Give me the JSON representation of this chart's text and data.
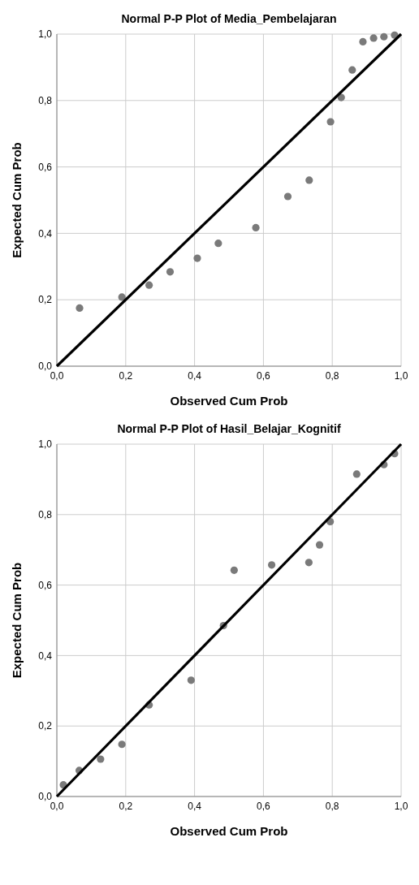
{
  "chart_data": [
    {
      "type": "scatter",
      "title": "Normal P-P Plot of Media_Pembelajaran",
      "xlabel": "Observed Cum Prob",
      "ylabel": "Expected Cum Prob",
      "xlim": [
        0,
        1
      ],
      "ylim": [
        0,
        1
      ],
      "xticks": [
        {
          "value": 0,
          "label": "0,0"
        },
        {
          "value": 0.2,
          "label": "0,2"
        },
        {
          "value": 0.4,
          "label": "0,4"
        },
        {
          "value": 0.6,
          "label": "0,6"
        },
        {
          "value": 0.8,
          "label": "0,8"
        },
        {
          "value": 1,
          "label": "1,0"
        }
      ],
      "yticks": [
        {
          "value": 0,
          "label": "0,0"
        },
        {
          "value": 0.2,
          "label": "0,2"
        },
        {
          "value": 0.4,
          "label": "0,4"
        },
        {
          "value": 0.6,
          "label": "0,6"
        },
        {
          "value": 0.8,
          "label": "0,8"
        },
        {
          "value": 1,
          "label": "1,0"
        }
      ],
      "grid": true,
      "line_style": "solid",
      "series": [
        {
          "marker": "circle",
          "color": "#7a7a7a",
          "x": [
            0.066,
            0.189,
            0.268,
            0.329,
            0.408,
            0.469,
            0.578,
            0.671,
            0.733,
            0.795,
            0.826,
            0.858,
            0.889,
            0.92,
            0.95,
            0.981
          ],
          "values": [
            0.175,
            0.208,
            0.244,
            0.284,
            0.325,
            0.37,
            0.417,
            0.511,
            0.56,
            0.736,
            0.809,
            0.892,
            0.977,
            0.988,
            0.992,
            0.997
          ]
        },
        {
          "type": "line",
          "color": "#000000",
          "x": [
            0,
            1
          ],
          "values": [
            0,
            1
          ]
        }
      ]
    },
    {
      "type": "scatter",
      "title": "Normal P-P Plot of Hasil_Belajar_Kognitif",
      "xlabel": "Observed Cum Prob",
      "ylabel": "Expected Cum Prob",
      "xlim": [
        0,
        1
      ],
      "ylim": [
        0,
        1
      ],
      "xticks": [
        {
          "value": 0,
          "label": "0,0"
        },
        {
          "value": 0.2,
          "label": "0,2"
        },
        {
          "value": 0.4,
          "label": "0,4"
        },
        {
          "value": 0.6,
          "label": "0,6"
        },
        {
          "value": 0.8,
          "label": "0,8"
        },
        {
          "value": 1,
          "label": "1,0"
        }
      ],
      "yticks": [
        {
          "value": 0,
          "label": "0,0"
        },
        {
          "value": 0.2,
          "label": "0,2"
        },
        {
          "value": 0.4,
          "label": "0,4"
        },
        {
          "value": 0.6,
          "label": "0,6"
        },
        {
          "value": 0.8,
          "label": "0,8"
        },
        {
          "value": 1,
          "label": "1,0"
        }
      ],
      "grid": true,
      "line_style": "solid",
      "series": [
        {
          "marker": "circle",
          "color": "#7a7a7a",
          "x": [
            0.019,
            0.065,
            0.127,
            0.189,
            0.268,
            0.39,
            0.484,
            0.515,
            0.624,
            0.732,
            0.763,
            0.794,
            0.871,
            0.95,
            0.981
          ],
          "values": [
            0.033,
            0.074,
            0.106,
            0.148,
            0.26,
            0.33,
            0.485,
            0.642,
            0.657,
            0.664,
            0.714,
            0.78,
            0.915,
            0.942,
            0.973
          ]
        },
        {
          "type": "line",
          "color": "#000000",
          "x": [
            0,
            1
          ],
          "values": [
            0,
            1
          ]
        }
      ]
    }
  ]
}
